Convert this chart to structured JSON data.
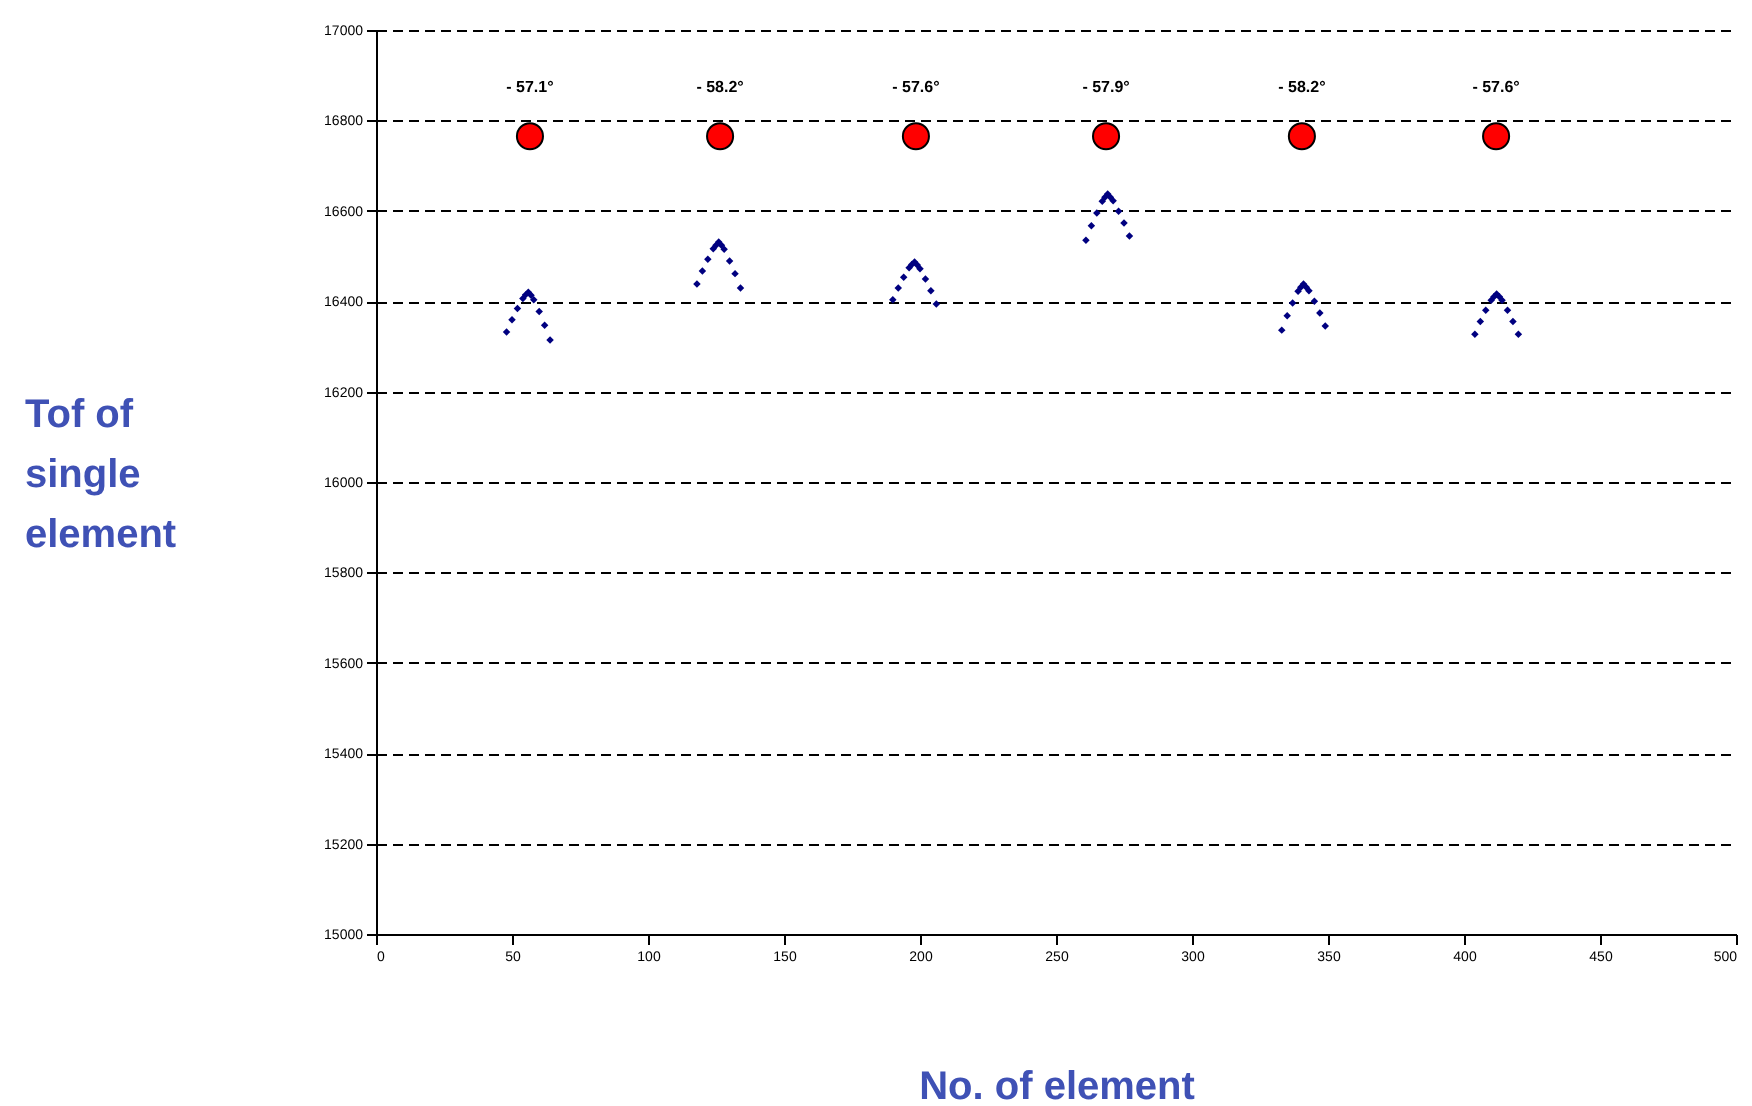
{
  "chart_data": {
    "type": "scatter",
    "xlabel": "No. of element",
    "ylabel": "Tof of single element",
    "xlim": [
      0,
      500
    ],
    "xticks": [
      0,
      50,
      100,
      150,
      200,
      250,
      300,
      350,
      400,
      450,
      500
    ],
    "ylim": [
      15000,
      17000
    ],
    "yticks": [
      15000,
      15200,
      15400,
      15600,
      15800,
      16000,
      16200,
      16400,
      16600,
      16800,
      17000
    ],
    "grid": "y",
    "annotations": [
      {
        "text": "- 57.1°",
        "x": 56.6,
        "y": 16765
      },
      {
        "text": "- 58.2°",
        "x": 126.5,
        "y": 16765
      },
      {
        "text": "- 57.6°",
        "x": 198.5,
        "y": 16765
      },
      {
        "text": "- 57.9°",
        "x": 268.4,
        "y": 16765
      },
      {
        "text": "- 58.2°",
        "x": 340.4,
        "y": 16765
      },
      {
        "text": "- 57.6°",
        "x": 411.8,
        "y": 16765
      }
    ],
    "series": [
      {
        "color": "#000080",
        "marker": "diamond",
        "x": [
          48,
          50,
          52,
          54,
          55,
          56,
          57,
          58,
          60,
          62,
          64,
          118,
          120,
          122,
          124,
          125,
          126,
          127,
          128,
          130,
          132,
          134,
          190,
          192,
          194,
          196,
          197,
          198,
          199,
          200,
          202,
          204,
          206,
          261,
          263,
          265,
          267,
          268,
          269,
          270,
          271,
          273,
          275,
          277,
          333,
          335,
          337,
          339,
          340,
          341,
          342,
          343,
          345,
          347,
          349,
          404,
          406,
          408,
          410,
          411,
          412,
          413,
          414,
          416,
          418,
          420
        ],
        "values": [
          16332,
          16359,
          16384,
          16406,
          16414,
          16420,
          16413,
          16403,
          16377,
          16347,
          16314,
          16438,
          16467,
          16493,
          16516,
          16524,
          16531,
          16524,
          16515,
          16489,
          16461,
          16429,
          16403,
          16429,
          16453,
          16474,
          16481,
          16487,
          16480,
          16472,
          16449,
          16423,
          16394,
          16535,
          16567,
          16595,
          16621,
          16630,
          16637,
          16630,
          16622,
          16599,
          16573,
          16544,
          16336,
          16368,
          16396,
          16422,
          16431,
          16438,
          16431,
          16423,
          16400,
          16374,
          16345,
          16327,
          16355,
          16380,
          16402,
          16410,
          16416,
          16410,
          16402,
          16380,
          16355,
          16327
        ]
      },
      {
        "color": "#ff0000",
        "marker": "circle",
        "x": [
          56.6,
          126.5,
          198.5,
          268.4,
          340.4,
          411.8
        ],
        "values": [
          16765,
          16765,
          16765,
          16765,
          16765,
          16765
        ]
      }
    ]
  }
}
